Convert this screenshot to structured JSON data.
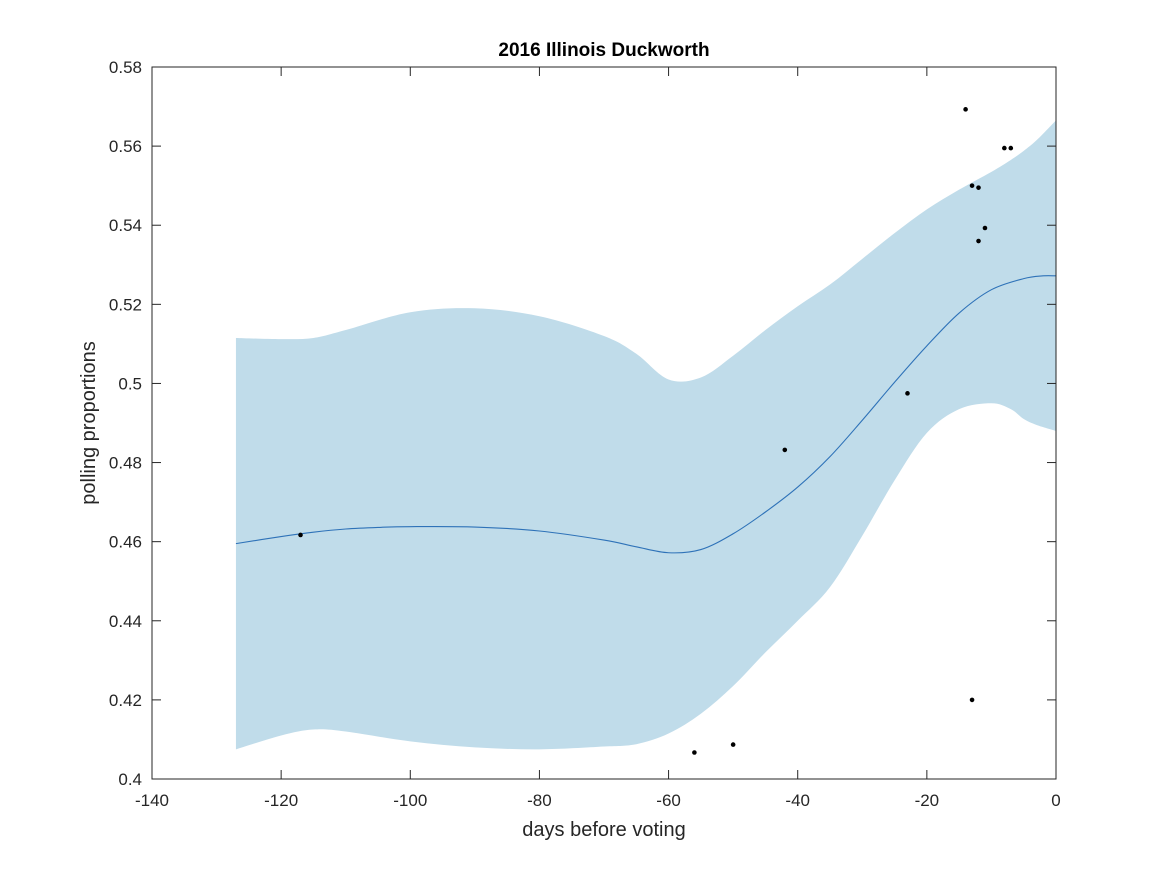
{
  "chart_data": {
    "type": "line",
    "title": "2016 Illinois Duckworth",
    "xlabel": "days before voting",
    "ylabel": "polling proportions",
    "xlim": [
      -140,
      0
    ],
    "ylim": [
      0.4,
      0.58
    ],
    "x_ticks": [
      -140,
      -120,
      -100,
      -80,
      -60,
      -40,
      -20,
      0
    ],
    "x_tick_labels": [
      "-140",
      "-120",
      "-100",
      "-80",
      "-60",
      "-40",
      "-20",
      "0"
    ],
    "y_ticks": [
      0.4,
      0.42,
      0.44,
      0.46,
      0.48,
      0.5,
      0.52,
      0.54,
      0.56,
      0.58
    ],
    "y_tick_labels": [
      "0.4",
      "0.42",
      "0.44",
      "0.46",
      "0.48",
      "0.5",
      "0.52",
      "0.54",
      "0.56",
      "0.58"
    ],
    "grid": false,
    "colors": {
      "band": "#c0dcea",
      "line": "#2e72b8",
      "points": "#000000",
      "axes": "#262626"
    },
    "series": [
      {
        "kind": "band",
        "x": [
          -127,
          -120,
          -115,
          -110,
          -100,
          -90,
          -80,
          -70,
          -65,
          -60,
          -55,
          -50,
          -45,
          -40,
          -35,
          -30,
          -25,
          -20,
          -15,
          -10,
          -7,
          -5,
          -3,
          0
        ],
        "upper": [
          0.5115,
          0.5112,
          0.5115,
          0.5135,
          0.518,
          0.519,
          0.517,
          0.512,
          0.5075,
          0.501,
          0.5015,
          0.507,
          0.5135,
          0.5195,
          0.525,
          0.5315,
          0.538,
          0.544,
          0.549,
          0.5535,
          0.5565,
          0.5588,
          0.5615,
          0.5665
        ],
        "lower": [
          0.4075,
          0.411,
          0.4125,
          0.412,
          0.4095,
          0.408,
          0.4075,
          0.4082,
          0.4088,
          0.4115,
          0.4165,
          0.4235,
          0.432,
          0.44,
          0.4485,
          0.4615,
          0.4755,
          0.4875,
          0.4935,
          0.495,
          0.4935,
          0.491,
          0.4895,
          0.488
        ]
      },
      {
        "kind": "line",
        "x": [
          -127,
          -120,
          -115,
          -110,
          -105,
          -100,
          -90,
          -80,
          -70,
          -65,
          -60,
          -55,
          -50,
          -45,
          -40,
          -35,
          -30,
          -25,
          -20,
          -15,
          -10,
          -5,
          -2,
          0
        ],
        "y": [
          0.4595,
          0.4613,
          0.4624,
          0.4632,
          0.4636,
          0.4638,
          0.4637,
          0.4627,
          0.4604,
          0.4587,
          0.4572,
          0.458,
          0.462,
          0.4675,
          0.4738,
          0.4815,
          0.4907,
          0.5003,
          0.5095,
          0.5178,
          0.5237,
          0.5265,
          0.5272,
          0.5272
        ]
      },
      {
        "kind": "scatter",
        "x": [
          -117,
          -56,
          -50,
          -42,
          -23,
          -14,
          -13,
          -13,
          -12,
          -12,
          -11,
          -8,
          -7
        ],
        "y": [
          0.4617,
          0.4067,
          0.4087,
          0.4832,
          0.4975,
          0.5693,
          0.55,
          0.42,
          0.5495,
          0.536,
          0.5393,
          0.5595,
          0.5595
        ]
      }
    ]
  }
}
